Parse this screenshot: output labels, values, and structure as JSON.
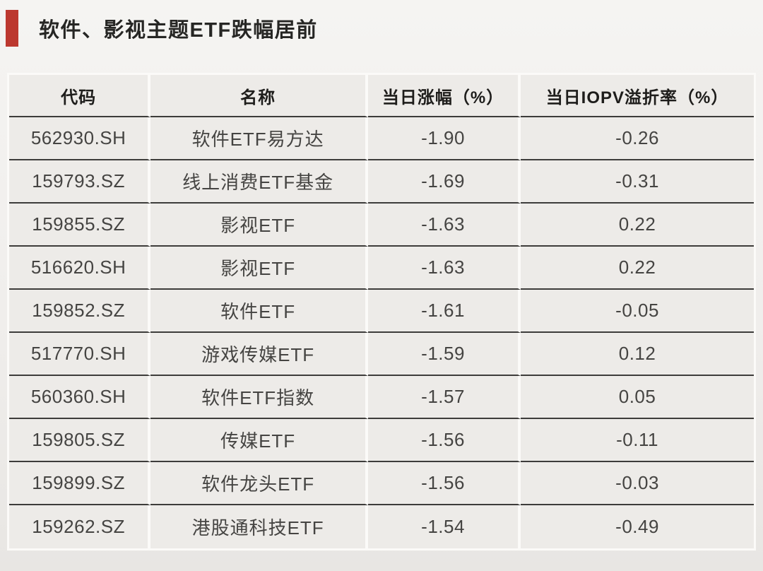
{
  "page": {
    "title": "软件、影视主题ETF跌幅居前"
  },
  "colors": {
    "accent_red": "#bc382f",
    "cell_background": "#edebe8",
    "row_separator": "#3d3c3a",
    "column_separator": "#fbfaf8"
  },
  "chart_data": {
    "type": "table",
    "title": "软件、影视主题ETF跌幅居前",
    "columns": [
      "代码",
      "名称",
      "当日涨幅（%）",
      "当日IOPV溢折率（%）"
    ],
    "rows": [
      {
        "code": "562930.SH",
        "name": "软件ETF易方达",
        "change": "-1.90",
        "iopv": "-0.26"
      },
      {
        "code": "159793.SZ",
        "name": "线上消费ETF基金",
        "change": "-1.69",
        "iopv": "-0.31"
      },
      {
        "code": "159855.SZ",
        "name": "影视ETF",
        "change": "-1.63",
        "iopv": "0.22"
      },
      {
        "code": "516620.SH",
        "name": "影视ETF",
        "change": "-1.63",
        "iopv": "0.22"
      },
      {
        "code": "159852.SZ",
        "name": "软件ETF",
        "change": "-1.61",
        "iopv": "-0.05"
      },
      {
        "code": "517770.SH",
        "name": "游戏传媒ETF",
        "change": "-1.59",
        "iopv": "0.12"
      },
      {
        "code": "560360.SH",
        "name": "软件ETF指数",
        "change": "-1.57",
        "iopv": "0.05"
      },
      {
        "code": "159805.SZ",
        "name": "传媒ETF",
        "change": "-1.56",
        "iopv": "-0.11"
      },
      {
        "code": "159899.SZ",
        "name": "软件龙头ETF",
        "change": "-1.56",
        "iopv": "-0.03"
      },
      {
        "code": "159262.SZ",
        "name": "港股通科技ETF",
        "change": "-1.54",
        "iopv": "-0.49"
      }
    ]
  }
}
